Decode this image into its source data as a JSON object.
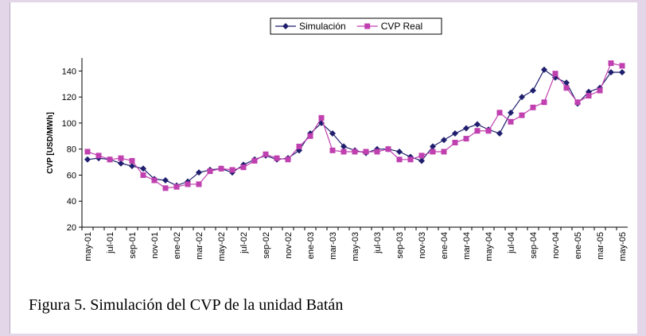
{
  "chart_data": {
    "type": "line",
    "ylabel": "CVP [USD/MWh]",
    "categories": [
      "may-01",
      null,
      "jul-01",
      null,
      "sep-01",
      null,
      "nov-01",
      null,
      "ene-02",
      null,
      "mar-02",
      null,
      "may-02",
      null,
      "jul-02",
      null,
      "sep-02",
      null,
      "nov-02",
      null,
      "ene-03",
      null,
      "mar-03",
      null,
      "may-03",
      null,
      "jul-03",
      null,
      "sep-03",
      null,
      "nov-03",
      null,
      "ene-04",
      null,
      "mar-04",
      null,
      "may-04",
      null,
      "jul-04",
      null,
      "sep-04",
      null,
      "nov-04",
      null,
      "ene-05",
      null,
      "mar-05",
      null,
      "may-05"
    ],
    "series": [
      {
        "name": "Simulación",
        "color": "#1f1f6e",
        "marker": "diamond",
        "values": [
          72,
          73,
          72,
          69,
          67,
          65,
          57,
          56,
          52,
          55,
          62,
          64,
          65,
          62,
          68,
          72,
          75,
          72,
          73,
          79,
          92,
          100,
          92,
          82,
          79,
          77,
          80,
          80,
          78,
          74,
          71,
          82,
          87,
          92,
          96,
          99,
          95,
          92,
          108,
          120,
          125,
          141,
          135,
          131,
          115,
          124,
          127,
          139,
          139
        ]
      },
      {
        "name": "CVP Real",
        "color": "#c040b0",
        "marker": "square",
        "values": [
          78,
          75,
          72,
          73,
          71,
          60,
          56,
          50,
          51,
          53,
          53,
          63,
          65,
          64,
          66,
          71,
          76,
          73,
          72,
          82,
          90,
          104,
          79,
          78,
          78,
          78,
          78,
          80,
          72,
          72,
          75,
          78,
          78,
          85,
          88,
          94,
          94,
          108,
          101,
          106,
          112,
          116,
          138,
          127,
          116,
          121,
          125,
          146,
          144
        ]
      }
    ],
    "ylim": [
      20,
      150
    ],
    "yticks": [
      20,
      40,
      60,
      80,
      100,
      120,
      140
    ]
  },
  "caption": "Figura 5. Simulación del CVP de la unidad Batán"
}
